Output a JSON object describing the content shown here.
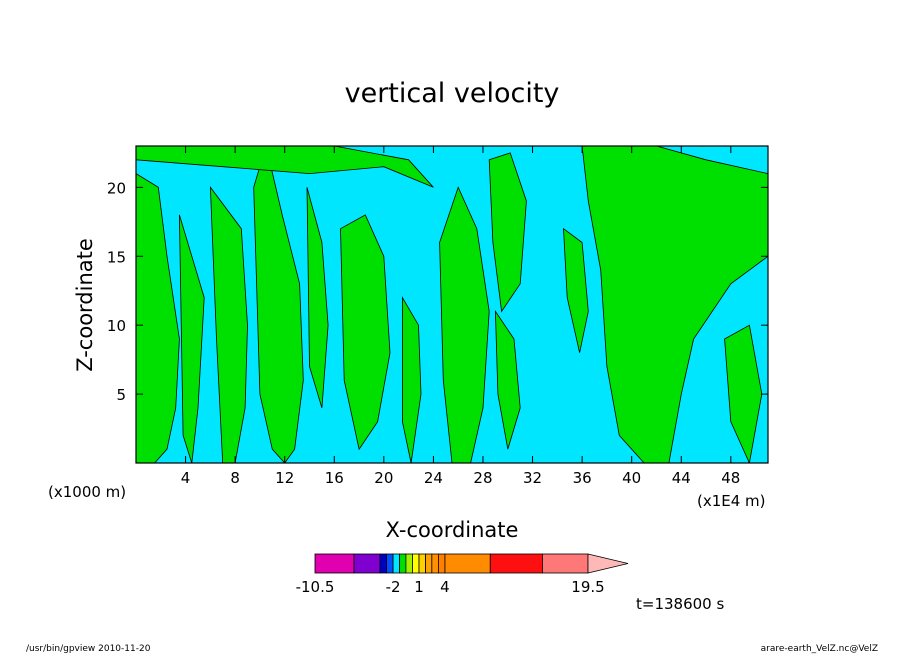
{
  "chart_data": {
    "type": "heatmap",
    "title": "vertical velocity",
    "xlabel": "X-coordinate",
    "ylabel": "Z-coordinate",
    "x_unit_label": "(x1000 m)",
    "x_unit_label_right": "(x1E4 m)",
    "xlim": [
      0,
      51
    ],
    "ylim": [
      0,
      23
    ],
    "x_ticks": [
      4,
      8,
      12,
      16,
      20,
      24,
      28,
      32,
      36,
      40,
      44,
      48
    ],
    "x_tick_labels": [
      "4",
      "8",
      "12",
      "16",
      "20",
      "24",
      "28",
      "32",
      "36",
      "40",
      "44",
      "48"
    ],
    "y_ticks": [
      5,
      10,
      15,
      20
    ],
    "y_tick_labels": [
      "5",
      "10",
      "15",
      "20"
    ],
    "background_color": "#00e6ff",
    "fill_color": "#00e000",
    "regions": [
      {
        "name": "left-edge",
        "x": [
          0,
          1.8,
          2.5,
          3.5,
          3.2,
          2.5,
          1.5,
          0
        ],
        "y": [
          21,
          20,
          15,
          9,
          4,
          1,
          0,
          0
        ]
      },
      {
        "name": "col-a",
        "x": [
          3.5,
          5.5,
          5.0,
          4.5,
          3.8
        ],
        "y": [
          18,
          12,
          4,
          0,
          2
        ]
      },
      {
        "name": "col-b",
        "x": [
          6.0,
          8.5,
          9.0,
          8.8,
          8.0,
          7.0,
          6.5
        ],
        "y": [
          20,
          17,
          10,
          4,
          0,
          0,
          9
        ]
      },
      {
        "name": "col-c",
        "x": [
          9.5,
          10.5,
          11.8,
          13.2,
          13.5,
          12.8,
          12.0,
          11.0,
          10.0
        ],
        "y": [
          20,
          23,
          18,
          13,
          6,
          1,
          0,
          1,
          5
        ]
      },
      {
        "name": "col-d",
        "x": [
          13.8,
          15.0,
          15.5,
          15.0,
          14.0
        ],
        "y": [
          20,
          16,
          10,
          4,
          7
        ]
      },
      {
        "name": "top-band",
        "x": [
          0,
          5,
          10,
          16,
          22,
          24,
          20,
          14,
          7,
          0
        ],
        "y": [
          23,
          23,
          23,
          23,
          22,
          20,
          21.5,
          21,
          21.5,
          22
        ]
      },
      {
        "name": "col-e",
        "x": [
          16.5,
          18.5,
          20.0,
          20.5,
          19.5,
          18.0,
          16.8
        ],
        "y": [
          17,
          18,
          15,
          8,
          3,
          1,
          6
        ]
      },
      {
        "name": "col-f",
        "x": [
          21.5,
          22.8,
          23.0,
          22.2,
          21.5
        ],
        "y": [
          12,
          10,
          5,
          0,
          3
        ]
      },
      {
        "name": "col-g",
        "x": [
          24.5,
          26.0,
          27.5,
          28.5,
          28.0,
          27.0,
          25.5,
          24.8
        ],
        "y": [
          16,
          20,
          17,
          11,
          4,
          0,
          0,
          6
        ]
      },
      {
        "name": "col-h",
        "x": [
          28.5,
          30.2,
          31.5,
          31.0,
          29.5,
          28.8
        ],
        "y": [
          22,
          22.5,
          19,
          13,
          11,
          16
        ]
      },
      {
        "name": "col-i",
        "x": [
          29.0,
          30.5,
          31.0,
          30.0,
          29.2
        ],
        "y": [
          11,
          9,
          4,
          1,
          5
        ]
      },
      {
        "name": "col-j",
        "x": [
          34.5,
          36.0,
          36.5,
          35.8,
          34.8
        ],
        "y": [
          17,
          16,
          11,
          8,
          12
        ]
      },
      {
        "name": "right-main",
        "x": [
          36.0,
          42.0,
          46.0,
          51.0,
          51.0,
          48.0,
          45.0,
          44.0,
          43.0,
          41.0,
          39.0,
          38.0,
          37.5,
          36.5
        ],
        "y": [
          23,
          23,
          22,
          21,
          15,
          13,
          9,
          5,
          0,
          0,
          2,
          7,
          14,
          19
        ]
      },
      {
        "name": "right-low",
        "x": [
          47.5,
          49.5,
          50.5,
          49.5,
          48.0
        ],
        "y": [
          9,
          10,
          5,
          0,
          3
        ]
      }
    ],
    "colorbar": {
      "tick_labels": [
        "-10.5",
        "-2",
        "1",
        "4",
        "19.5"
      ],
      "tick_positions": [
        0.0,
        0.286,
        0.381,
        0.476,
        1.0
      ],
      "bins": [
        {
          "from": 0.0,
          "to": 0.143,
          "color": "#e000b0"
        },
        {
          "from": 0.143,
          "to": 0.238,
          "color": "#8000d0"
        },
        {
          "from": 0.238,
          "to": 0.262,
          "color": "#0000c0"
        },
        {
          "from": 0.262,
          "to": 0.286,
          "color": "#0050ff"
        },
        {
          "from": 0.286,
          "to": 0.31,
          "color": "#00e6ff"
        },
        {
          "from": 0.31,
          "to": 0.333,
          "color": "#00e000"
        },
        {
          "from": 0.333,
          "to": 0.357,
          "color": "#a0f000"
        },
        {
          "from": 0.357,
          "to": 0.381,
          "color": "#ffff00"
        },
        {
          "from": 0.381,
          "to": 0.405,
          "color": "#ffd000"
        },
        {
          "from": 0.405,
          "to": 0.428,
          "color": "#ffa000"
        },
        {
          "from": 0.428,
          "to": 0.452,
          "color": "#ff9000"
        },
        {
          "from": 0.452,
          "to": 0.476,
          "color": "#ff8000"
        },
        {
          "from": 0.476,
          "to": 0.642,
          "color": "#ff8c00"
        },
        {
          "from": 0.642,
          "to": 0.833,
          "color": "#ff1010"
        },
        {
          "from": 0.833,
          "to": 1.0,
          "color": "#ff7878"
        }
      ],
      "arrow_color": "#ffb8b8"
    }
  },
  "time_label": "t=138600 s",
  "footer_left": "/usr/bin/gpview   2010-11-20",
  "footer_right": "arare-earth_VelZ.nc@VelZ"
}
